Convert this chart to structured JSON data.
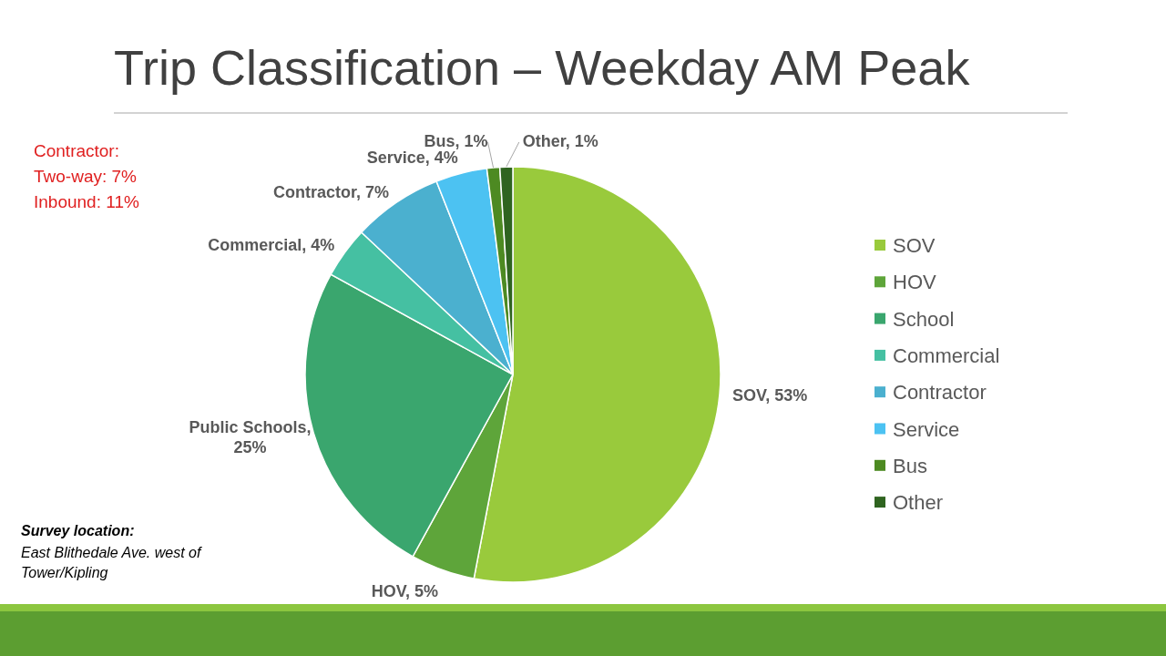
{
  "chart_data": {
    "type": "pie",
    "title": "Trip Classification – Weekday AM Peak",
    "categories": [
      "SOV",
      "HOV",
      "School",
      "Commercial",
      "Contractor",
      "Service",
      "Bus",
      "Other"
    ],
    "values": [
      53,
      5,
      25,
      4,
      7,
      4,
      1,
      1
    ],
    "colors": [
      "#99ca3c",
      "#5ea53a",
      "#3aa66e",
      "#45c0a2",
      "#4bb0cf",
      "#4cc2f2",
      "#4d8a22",
      "#2f6420"
    ],
    "value_labels": [
      "SOV, 53%",
      "HOV, 5%",
      "Public Schools, 25%",
      "Commercial, 4%",
      "Contractor, 7%",
      "Service, 4%",
      "Bus, 1%",
      "Other, 1%"
    ],
    "legend": "right",
    "annotations": [
      "Contractor:\nTwo-way: 7%\nInbound: 11%",
      "Survey location:",
      "East Blithedale Ave. west of\nTower/Kipling"
    ]
  }
}
